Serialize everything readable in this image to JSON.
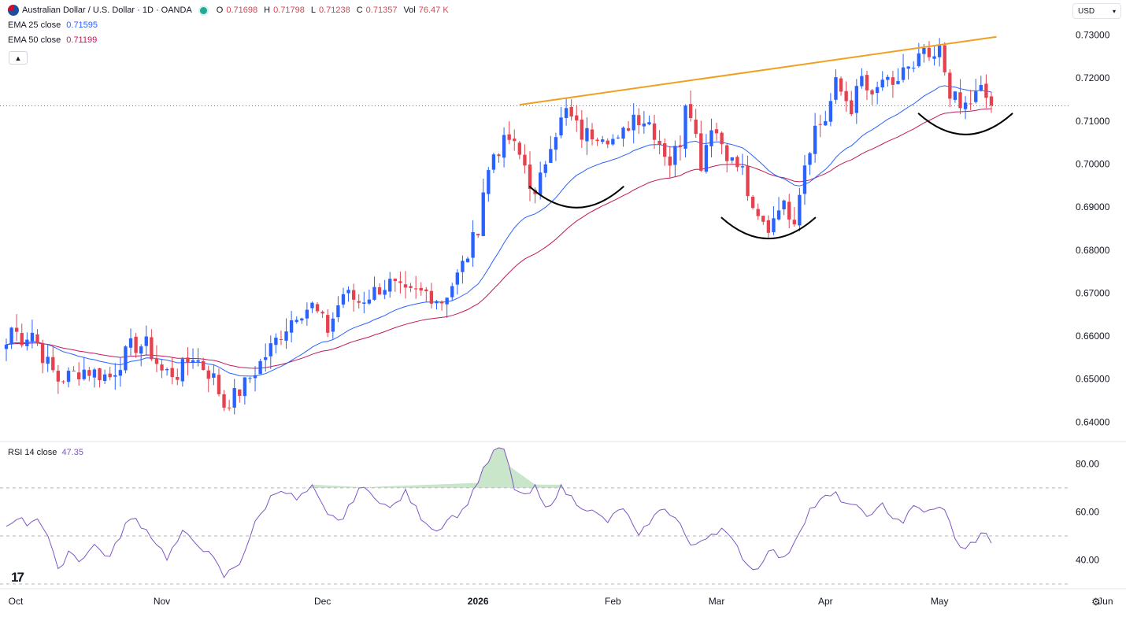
{
  "header": {
    "symbol_title": "Australian Dollar / U.S. Dollar · 1D · OANDA",
    "ohlc": [
      {
        "key": "O",
        "value": "0.71698"
      },
      {
        "key": "H",
        "value": "0.71798"
      },
      {
        "key": "L",
        "value": "0.71238"
      },
      {
        "key": "C",
        "value": "0.71357"
      },
      {
        "key": "Vol",
        "value": "76.47 K"
      }
    ],
    "ema25_label": "EMA 25 close",
    "ema25_value": "0.71595",
    "ema50_label": "EMA 50 close",
    "ema50_value": "0.71199",
    "collapse_icon": "chevron-up-icon",
    "flag_icon": "aud-usd-flag-icon"
  },
  "toolbar": {
    "currency": "USD",
    "currency_icon": "chevron-down-icon",
    "settings_icon": "gear-icon",
    "logo_icon": "tradingview-logo-icon",
    "logo_text": "17"
  },
  "rsi_legend": {
    "label": "RSI 14 close",
    "value": "47.35"
  },
  "colors": {
    "up": "#2962ff",
    "down": "#e5414f",
    "ema25": "#2962ff",
    "ema50": "#c2185b",
    "rsi": "#7e57c2",
    "trendline": "#f0a020",
    "pattern": "#000000"
  },
  "chart_data": [
    {
      "type": "candlestick",
      "title": "Australian Dollar / U.S. Dollar · 1D · OANDA",
      "ylim": [
        0.6375,
        0.7345
      ],
      "y_ticks": [
        "0.73000",
        "0.72000",
        "0.71000",
        "0.70000",
        "0.69000",
        "0.68000",
        "0.67000",
        "0.66000",
        "0.65000",
        "0.64000"
      ],
      "x_ticks": [
        "Oct",
        "Nov",
        "Dec",
        "2026",
        "Feb",
        "Mar",
        "Apr",
        "May",
        "Jun"
      ],
      "current_price_line": 0.71357,
      "series": [
        {
          "name": "AUD/USD",
          "anchors": [
            [
              0,
              0.658
            ],
            [
              1,
              0.662
            ],
            [
              3,
              0.6595
            ],
            [
              5,
              0.661
            ],
            [
              7,
              0.6555
            ],
            [
              10,
              0.6498
            ],
            [
              15,
              0.6522
            ],
            [
              20,
              0.6505
            ],
            [
              24,
              0.6575
            ],
            [
              27,
              0.658
            ],
            [
              30,
              0.6518
            ],
            [
              33,
              0.6512
            ],
            [
              36,
              0.6555
            ],
            [
              40,
              0.6502
            ],
            [
              42,
              0.644
            ],
            [
              45,
              0.6472
            ],
            [
              48,
              0.652
            ],
            [
              52,
              0.659
            ],
            [
              56,
              0.6655
            ],
            [
              59,
              0.667
            ],
            [
              62,
              0.6615
            ],
            [
              65,
              0.67
            ],
            [
              68,
              0.668
            ],
            [
              72,
              0.6712
            ],
            [
              74,
              0.6722
            ],
            [
              77,
              0.6695
            ],
            [
              81,
              0.6702
            ],
            [
              84,
              0.6682
            ],
            [
              87,
              0.674
            ],
            [
              89,
              0.679
            ],
            [
              91,
              0.6855
            ],
            [
              92,
              0.694
            ],
            [
              94,
              0.7025
            ],
            [
              97,
              0.7058
            ],
            [
              100,
              0.6998
            ],
            [
              102,
              0.6918
            ],
            [
              105,
              0.7055
            ],
            [
              108,
              0.7122
            ],
            [
              111,
              0.7068
            ],
            [
              115,
              0.7075
            ],
            [
              118,
              0.7048
            ],
            [
              121,
              0.7115
            ],
            [
              124,
              0.7098
            ],
            [
              128,
              0.7005
            ],
            [
              130,
              0.7055
            ],
            [
              131,
              0.715
            ],
            [
              132,
              0.7128
            ],
            [
              134,
              0.7002
            ],
            [
              136,
              0.7095
            ],
            [
              140,
              0.7005
            ],
            [
              142,
              0.6985
            ],
            [
              144,
              0.688
            ],
            [
              147,
              0.685
            ],
            [
              149,
              0.691
            ],
            [
              152,
              0.6878
            ],
            [
              154,
              0.7005
            ],
            [
              156,
              0.7085
            ],
            [
              158,
              0.7105
            ],
            [
              160,
              0.7185
            ],
            [
              163,
              0.7132
            ],
            [
              165,
              0.7198
            ],
            [
              167,
              0.7145
            ],
            [
              169,
              0.7198
            ],
            [
              171,
              0.7168
            ],
            [
              173,
              0.7225
            ],
            [
              175,
              0.7212
            ],
            [
              177,
              0.7268
            ],
            [
              178,
              0.7228
            ],
            [
              180,
              0.7262
            ],
            [
              182,
              0.717
            ],
            [
              184,
              0.7128
            ],
            [
              186,
              0.7145
            ],
            [
              188,
              0.7172
            ],
            [
              190,
              0.7136
            ]
          ]
        },
        {
          "name": "EMA 25 close",
          "value": 0.71595
        },
        {
          "name": "EMA 50 close",
          "value": 0.71199
        }
      ],
      "annotations": [
        {
          "type": "trendline",
          "from": [
            99,
            0.7138
          ],
          "to": [
            191,
            0.7296
          ]
        },
        {
          "type": "arc",
          "center": [
            110,
            0.6897
          ],
          "label": ""
        },
        {
          "type": "arc",
          "center": [
            147,
            0.6825
          ],
          "label": ""
        },
        {
          "type": "arc",
          "center": [
            185,
            0.7067
          ],
          "label": ""
        }
      ]
    },
    {
      "type": "line",
      "title": "RSI 14 close",
      "ylim": [
        30,
        88
      ],
      "y_ticks": [
        "80.00",
        "60.00",
        "40.00"
      ],
      "levels": [
        70,
        50,
        30
      ],
      "current_value": 47.35,
      "series": [
        {
          "name": "RSI 14 close",
          "anchors": [
            [
              0,
              54
            ],
            [
              2,
              58
            ],
            [
              4,
              55
            ],
            [
              6,
              58
            ],
            [
              8,
              50
            ],
            [
              10,
              35
            ],
            [
              12,
              44
            ],
            [
              14,
              40
            ],
            [
              17,
              46
            ],
            [
              20,
              41
            ],
            [
              23,
              55
            ],
            [
              25,
              57
            ],
            [
              28,
              50
            ],
            [
              31,
              41
            ],
            [
              34,
              51
            ],
            [
              37,
              47
            ],
            [
              40,
              40
            ],
            [
              42,
              33
            ],
            [
              45,
              39
            ],
            [
              48,
              55
            ],
            [
              51,
              66
            ],
            [
              53,
              70
            ],
            [
              56,
              65
            ],
            [
              59,
              70
            ],
            [
              62,
              58
            ],
            [
              65,
              57
            ],
            [
              68,
              70
            ],
            [
              71,
              67
            ],
            [
              74,
              61
            ],
            [
              77,
              68
            ],
            [
              80,
              58
            ],
            [
              83,
              52
            ],
            [
              85,
              57
            ],
            [
              88,
              60
            ],
            [
              91,
              73
            ],
            [
              94,
              85
            ],
            [
              96,
              86
            ],
            [
              98,
              70
            ],
            [
              100,
              66
            ],
            [
              102,
              70
            ],
            [
              104,
              61
            ],
            [
              107,
              70
            ],
            [
              110,
              64
            ],
            [
              113,
              60
            ],
            [
              116,
              56
            ],
            [
              119,
              62
            ],
            [
              122,
              49
            ],
            [
              124,
              56
            ],
            [
              127,
              62
            ],
            [
              130,
              55
            ],
            [
              132,
              45
            ],
            [
              135,
              50
            ],
            [
              138,
              53
            ],
            [
              141,
              45
            ],
            [
              143,
              38
            ],
            [
              145,
              36
            ],
            [
              147,
              45
            ],
            [
              150,
              40
            ],
            [
              152,
              48
            ],
            [
              155,
              61
            ],
            [
              158,
              66
            ],
            [
              160,
              67
            ],
            [
              163,
              62
            ],
            [
              165,
              61
            ],
            [
              167,
              58
            ],
            [
              169,
              63
            ],
            [
              171,
              58
            ],
            [
              173,
              56
            ],
            [
              175,
              62
            ],
            [
              178,
              60
            ],
            [
              181,
              62
            ],
            [
              183,
              48
            ],
            [
              185,
              45
            ],
            [
              187,
              48
            ],
            [
              189,
              52
            ],
            [
              190,
              47
            ]
          ]
        }
      ]
    }
  ]
}
